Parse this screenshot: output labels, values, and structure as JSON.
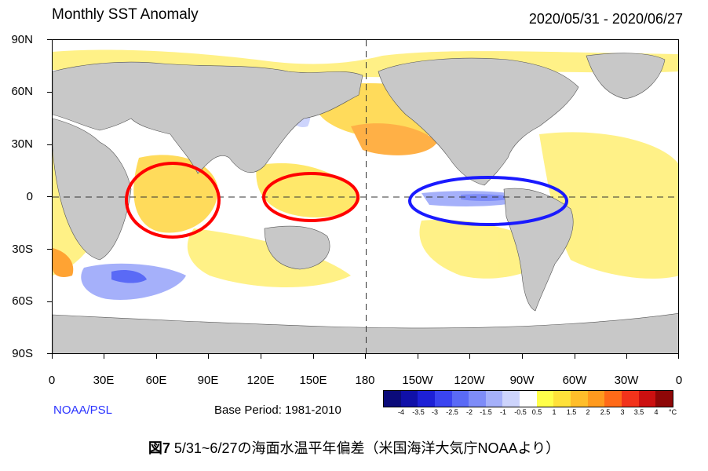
{
  "title": "Monthly SST Anomaly",
  "date_range": "2020/05/31 - 2020/06/27",
  "source": "NOAA/PSL",
  "base_period": "Base Period: 1981-2010",
  "lat_labels": [
    "90N",
    "60N",
    "30N",
    "0",
    "30S",
    "60S",
    "90S"
  ],
  "lon_labels": [
    "0",
    "30E",
    "60E",
    "90E",
    "120E",
    "150E",
    "180",
    "150W",
    "120W",
    "90W",
    "60W",
    "30W",
    "0"
  ],
  "colorbar": {
    "labels": [
      "-4",
      "-3.5",
      "-3",
      "-2.5",
      "-2",
      "-1.5",
      "-1",
      "-0.5",
      "0.5",
      "1",
      "1.5",
      "2",
      "2.5",
      "3",
      "3.5",
      "4"
    ],
    "unit": "°C",
    "colors": [
      "#0b0b7a",
      "#1010a8",
      "#1d20d6",
      "#3a44f0",
      "#5a6af6",
      "#7e8cf8",
      "#a5b0fa",
      "#cdd4fc",
      "#ffffff",
      "#ffff4a",
      "#ffe13a",
      "#ffbe2a",
      "#ff9a1e",
      "#ff6a18",
      "#f2331b",
      "#cc1010",
      "#8e0707"
    ]
  },
  "caption_label": "図7",
  "caption_text": " 5/31~6/27の海面水温平年偏差（米国海洋大気庁NOAAより）",
  "colors": {
    "land": "#c8c8c8",
    "warm": "#ffe13a",
    "cool": "#a5b0fa",
    "circle_warm": "#ff0000",
    "circle_cool": "#1a1aff"
  }
}
